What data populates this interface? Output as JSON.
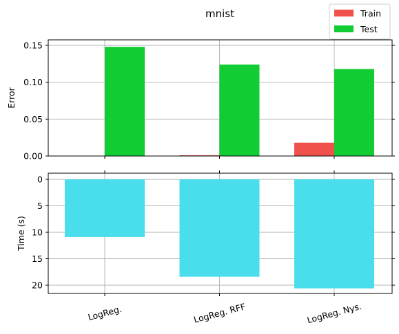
{
  "chart_data": [
    {
      "type": "bar",
      "title": "mnist",
      "ylabel": "Error",
      "xlabel": "",
      "categories": [
        "LogReg.",
        "LogReg. RFF",
        "LogReg. Nys."
      ],
      "series": [
        {
          "name": "Train",
          "values": [
            0.0,
            0.001,
            0.018
          ],
          "color": "#f0514a"
        },
        {
          "name": "Test",
          "values": [
            0.148,
            0.124,
            0.118
          ],
          "color": "#11cc33"
        }
      ],
      "ylim": [
        0,
        0.155
      ],
      "yticks": [
        "0.00",
        "0.05",
        "0.10",
        "0.15"
      ],
      "grid": true,
      "legend": "top-right"
    },
    {
      "type": "bar",
      "ylabel": "Time (s)",
      "xlabel": "",
      "categories": [
        "LogReg.",
        "LogReg. RFF",
        "LogReg. Nys."
      ],
      "series": [
        {
          "values": [
            10.9,
            18.4,
            20.6
          ],
          "color": "#4adeec"
        }
      ],
      "ylim": [
        21.6,
        0
      ],
      "inverted": true,
      "yticks": [
        "0",
        "5",
        "10",
        "15",
        "20"
      ],
      "grid": true
    }
  ]
}
